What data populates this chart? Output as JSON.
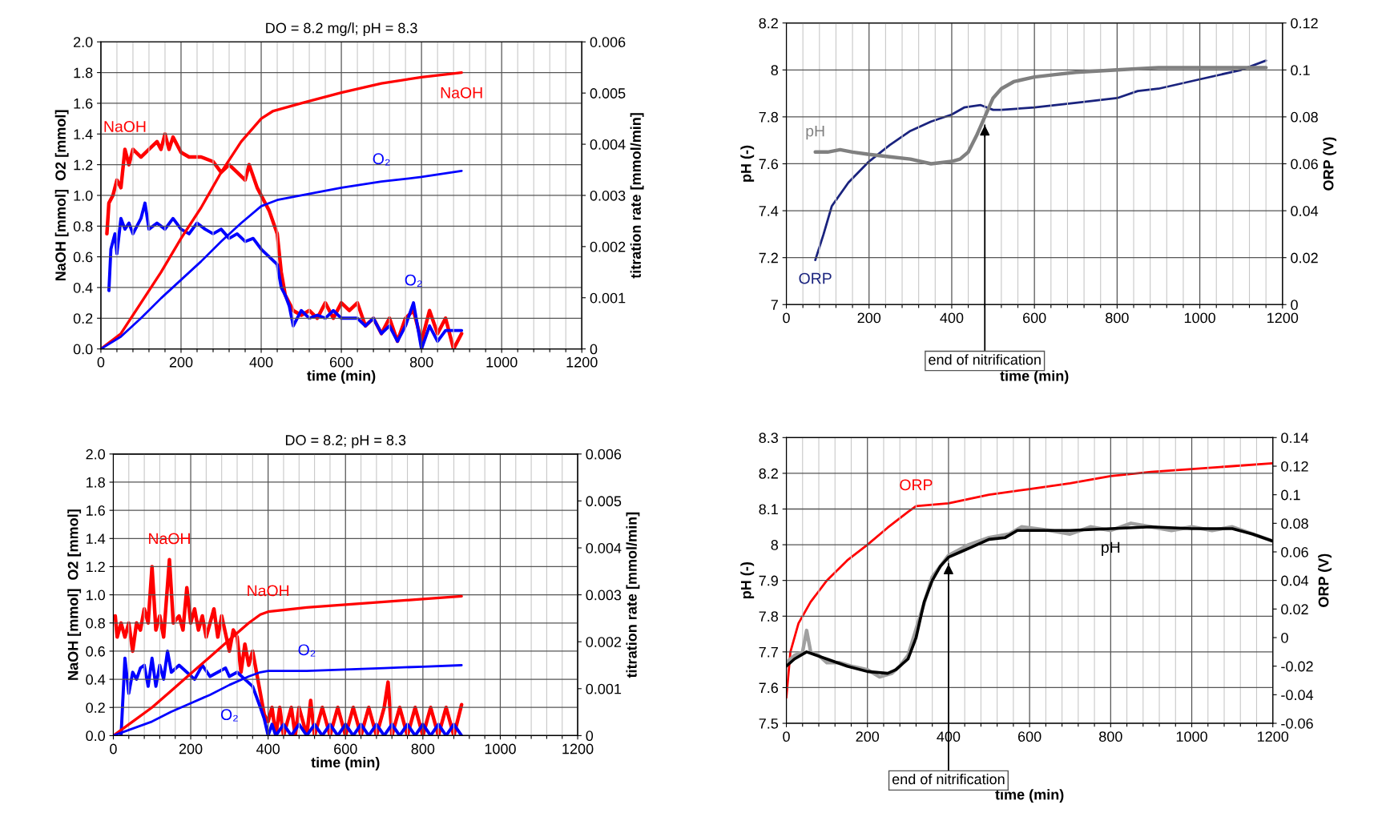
{
  "chart_data": [
    {
      "type": "line",
      "title": "DO = 8.2 mg/l; pH = 8.3",
      "xlabel": "time (min)",
      "ylabel": "NaOH [mmol]  O2 [mmol]",
      "y2label": "titration rate [mmol/min]",
      "xlim": [
        0,
        1200
      ],
      "xticks": [
        0,
        {
          "value": 40,
          "label": null
        },
        {
          "value": 80,
          "label": null
        },
        {
          "value": 120,
          "label": null
        },
        {
          "value": 160,
          "label": null
        },
        200,
        {
          "value": 240,
          "label": null
        },
        {
          "value": 280,
          "label": null
        },
        {
          "value": 320,
          "label": null
        },
        {
          "value": 360,
          "label": null
        },
        400,
        {
          "value": 440,
          "label": null
        },
        {
          "value": 480,
          "label": null
        },
        {
          "value": 520,
          "label": null
        },
        {
          "value": 560,
          "label": null
        },
        600,
        {
          "value": 640,
          "label": null
        },
        {
          "value": 680,
          "label": null
        },
        {
          "value": 720,
          "label": null
        },
        {
          "value": 760,
          "label": null
        },
        800,
        {
          "value": 840,
          "label": null
        },
        {
          "value": 880,
          "label": null
        },
        {
          "value": 920,
          "label": null
        },
        {
          "value": 960,
          "label": null
        },
        1000,
        {
          "value": 1040,
          "label": null
        },
        {
          "value": 1080,
          "label": null
        },
        {
          "value": 1120,
          "label": null
        },
        {
          "value": 1160,
          "label": null
        },
        1200
      ],
      "ylim": [
        0,
        2
      ],
      "yticks": [
        {
          "value": 0,
          "label": "0.0"
        },
        0.2,
        0.4,
        0.6,
        0.8,
        {
          "value": 1,
          "label": "1.0"
        },
        1.2,
        1.4,
        1.6,
        1.8,
        {
          "value": 2,
          "label": "2.0"
        }
      ],
      "y2lim": [
        0,
        0.006
      ],
      "y2ticks": [
        0,
        0.001,
        0.002,
        0.003,
        0.004,
        0.005,
        0.006
      ],
      "grid": true,
      "series": [
        {
          "name": "NaOH",
          "color": "#ff0000",
          "axis": "y2",
          "x": [
            15,
            20,
            30,
            40,
            50,
            60,
            70,
            80,
            100,
            120,
            140,
            150,
            160,
            170,
            180,
            200,
            220,
            250,
            280,
            300,
            320,
            340,
            360,
            370,
            390,
            400,
            420,
            440,
            450,
            460,
            480,
            500,
            520,
            540,
            560,
            580,
            600,
            620,
            640,
            660,
            680,
            700,
            720,
            740,
            760,
            780,
            800,
            820,
            840,
            860,
            880,
            900
          ],
          "values": [
            0.00225,
            0.00285,
            0.003,
            0.0033,
            0.00315,
            0.0039,
            0.0036,
            0.0039,
            0.00375,
            0.0039,
            0.00405,
            0.0039,
            0.0042,
            0.0039,
            0.00414,
            0.00384,
            0.00375,
            0.00375,
            0.00366,
            0.00345,
            0.0036,
            0.00345,
            0.0033,
            0.0036,
            0.00315,
            0.003,
            0.0027,
            0.00225,
            0.0015,
            0.00105,
            0.00075,
            0.00066,
            0.00075,
            0.0006,
            0.0009,
            0.0006,
            0.0009,
            0.00075,
            0.0009,
            0.00045,
            0.0006,
            0.0003,
            0.0006,
            0.00015,
            0.0006,
            0.00075,
            0.00015,
            0.00075,
            0.0003,
            0.0006,
            0,
            0.0003
          ]
        },
        {
          "name": "O₂",
          "color": "#0000ff",
          "axis": "y2",
          "x": [
            20,
            25,
            35,
            40,
            50,
            60,
            70,
            80,
            100,
            110,
            120,
            140,
            160,
            180,
            200,
            220,
            240,
            260,
            280,
            300,
            320,
            340,
            360,
            380,
            400,
            420,
            440,
            450,
            460,
            470,
            480,
            500,
            520,
            540,
            560,
            580,
            600,
            620,
            640,
            660,
            680,
            700,
            720,
            740,
            760,
            780,
            800,
            820,
            840,
            860,
            880,
            900
          ],
          "values": [
            0.00114,
            0.00195,
            0.00225,
            0.00186,
            0.00255,
            0.00234,
            0.00246,
            0.00225,
            0.00255,
            0.00285,
            0.00234,
            0.00246,
            0.00234,
            0.00255,
            0.00234,
            0.00225,
            0.00246,
            0.00234,
            0.00225,
            0.00234,
            0.00216,
            0.00225,
            0.0021,
            0.00216,
            0.00195,
            0.0018,
            0.00165,
            0.0012,
            0.00105,
            0.00084,
            0.00045,
            0.00075,
            0.0006,
            0.00066,
            0.0006,
            0.00075,
            0.0006,
            0.0006,
            0.0006,
            0.00045,
            0.0006,
            0.0003,
            0.00045,
            0.00015,
            0.00045,
            0.0009,
            0,
            0.00045,
            0.00015,
            0.00036,
            0.00036,
            0.00036
          ]
        },
        {
          "name": "NaOH",
          "color": "#ff0000",
          "axis": "y",
          "x": [
            0,
            50,
            100,
            150,
            200,
            250,
            300,
            350,
            400,
            430,
            500,
            600,
            700,
            800,
            900
          ],
          "values": [
            0,
            0.1,
            0.3,
            0.5,
            0.72,
            0.92,
            1.15,
            1.35,
            1.5,
            1.55,
            1.6,
            1.67,
            1.73,
            1.77,
            1.8
          ]
        },
        {
          "name": "O₂",
          "color": "#0000ff",
          "axis": "y",
          "x": [
            0,
            50,
            100,
            150,
            200,
            250,
            300,
            350,
            400,
            440,
            500,
            600,
            700,
            800,
            900
          ],
          "values": [
            0,
            0.08,
            0.2,
            0.33,
            0.45,
            0.57,
            0.7,
            0.82,
            0.93,
            0.97,
            1.0,
            1.05,
            1.09,
            1.12,
            1.16
          ]
        }
      ]
    },
    {
      "type": "line",
      "xlabel": "time (min)",
      "ylabel": "pH (-)",
      "y2label": "ORP (V)",
      "xlim": [
        0,
        1200
      ],
      "xticks": [
        0,
        {
          "value": 40,
          "label": null
        },
        {
          "value": 80,
          "label": null
        },
        {
          "value": 120,
          "label": null
        },
        {
          "value": 160,
          "label": null
        },
        200,
        {
          "value": 240,
          "label": null
        },
        {
          "value": 280,
          "label": null
        },
        {
          "value": 320,
          "label": null
        },
        {
          "value": 360,
          "label": null
        },
        400,
        {
          "value": 440,
          "label": null
        },
        {
          "value": 480,
          "label": null
        },
        {
          "value": 520,
          "label": null
        },
        {
          "value": 560,
          "label": null
        },
        600,
        {
          "value": 640,
          "label": null
        },
        {
          "value": 680,
          "label": null
        },
        {
          "value": 720,
          "label": null
        },
        {
          "value": 760,
          "label": null
        },
        800,
        {
          "value": 840,
          "label": null
        },
        {
          "value": 880,
          "label": null
        },
        {
          "value": 920,
          "label": null
        },
        {
          "value": 960,
          "label": null
        },
        1000,
        {
          "value": 1040,
          "label": null
        },
        {
          "value": 1080,
          "label": null
        },
        {
          "value": 1120,
          "label": null
        },
        {
          "value": 1160,
          "label": null
        },
        1200
      ],
      "ylim": [
        7,
        8.2
      ],
      "yticks": [
        7,
        7.2,
        7.4,
        7.6,
        7.8,
        8,
        8.2
      ],
      "y2lim": [
        0,
        0.12
      ],
      "y2ticks": [
        0,
        0.02,
        0.04,
        0.06,
        0.08,
        0.1,
        0.12
      ],
      "grid": true,
      "series": [
        {
          "name": "pH",
          "color": "#808080",
          "axis": "y",
          "x": [
            70,
            100,
            130,
            160,
            200,
            250,
            300,
            350,
            400,
            420,
            440,
            460,
            480,
            500,
            520,
            550,
            600,
            650,
            700,
            800,
            900,
            1000,
            1100,
            1160
          ],
          "values": [
            7.65,
            7.65,
            7.66,
            7.65,
            7.64,
            7.63,
            7.62,
            7.6,
            7.61,
            7.62,
            7.65,
            7.72,
            7.8,
            7.88,
            7.92,
            7.95,
            7.97,
            7.98,
            7.99,
            8.0,
            8.01,
            8.01,
            8.01,
            8.01
          ]
        },
        {
          "name": "ORP",
          "color": "#1a237e",
          "axis": "y2",
          "x": [
            70,
            90,
            110,
            150,
            200,
            250,
            300,
            350,
            400,
            430,
            470,
            500,
            520,
            600,
            700,
            800,
            850,
            900,
            1000,
            1100,
            1160
          ],
          "values": [
            0.019,
            0.03,
            0.042,
            0.052,
            0.061,
            0.068,
            0.074,
            0.078,
            0.081,
            0.084,
            0.085,
            0.083,
            0.083,
            0.084,
            0.086,
            0.088,
            0.091,
            0.092,
            0.096,
            0.1,
            0.104
          ]
        }
      ],
      "ref_lines": [
        {
          "axis": "x",
          "value": 480,
          "label": "end of nitrification"
        }
      ]
    },
    {
      "type": "line",
      "title": "DO = 8.2; pH = 8.3",
      "xlabel": "time (min)",
      "ylabel": "NaOH [mmol]  O2 [mmol]",
      "y2label": "titration rate [mmol/min]",
      "xlim": [
        0,
        1200
      ],
      "xticks": [
        0,
        {
          "value": 40,
          "label": null
        },
        {
          "value": 80,
          "label": null
        },
        {
          "value": 120,
          "label": null
        },
        {
          "value": 160,
          "label": null
        },
        200,
        {
          "value": 240,
          "label": null
        },
        {
          "value": 280,
          "label": null
        },
        {
          "value": 320,
          "label": null
        },
        {
          "value": 360,
          "label": null
        },
        400,
        {
          "value": 440,
          "label": null
        },
        {
          "value": 480,
          "label": null
        },
        {
          "value": 520,
          "label": null
        },
        {
          "value": 560,
          "label": null
        },
        600,
        {
          "value": 640,
          "label": null
        },
        {
          "value": 680,
          "label": null
        },
        {
          "value": 720,
          "label": null
        },
        {
          "value": 760,
          "label": null
        },
        800,
        {
          "value": 840,
          "label": null
        },
        {
          "value": 880,
          "label": null
        },
        {
          "value": 920,
          "label": null
        },
        {
          "value": 960,
          "label": null
        },
        1000,
        {
          "value": 1040,
          "label": null
        },
        {
          "value": 1080,
          "label": null
        },
        {
          "value": 1120,
          "label": null
        },
        {
          "value": 1160,
          "label": null
        },
        1200
      ],
      "ylim": [
        0,
        2
      ],
      "yticks": [
        {
          "value": 0,
          "label": "0.0"
        },
        0.2,
        0.4,
        0.6,
        0.8,
        {
          "value": 1,
          "label": "1.0"
        },
        1.2,
        1.4,
        1.6,
        1.8,
        {
          "value": 2,
          "label": "2.0"
        }
      ],
      "y2lim": [
        0,
        0.006
      ],
      "y2ticks": [
        0,
        0.001,
        0.002,
        0.003,
        0.004,
        0.005,
        0.006
      ],
      "grid": true,
      "series": [
        {
          "name": "NaOH",
          "color": "#ff0000",
          "axis": "y2",
          "x": [
            5,
            10,
            20,
            30,
            40,
            50,
            60,
            70,
            80,
            90,
            100,
            110,
            120,
            130,
            145,
            155,
            170,
            180,
            190,
            200,
            210,
            220,
            230,
            240,
            260,
            270,
            280,
            300,
            310,
            320,
            330,
            340,
            350,
            360,
            370,
            380,
            390,
            400,
            410,
            420,
            430,
            440,
            460,
            470,
            480,
            500,
            510,
            520,
            540,
            560,
            580,
            600,
            620,
            640,
            660,
            680,
            700,
            710,
            720,
            740,
            760,
            780,
            800,
            820,
            840,
            860,
            880,
            900
          ],
          "values": [
            0.00255,
            0.0021,
            0.0024,
            0.0021,
            0.0024,
            0.0018,
            0.0024,
            0.00225,
            0.0027,
            0.0024,
            0.0036,
            0.00225,
            0.00255,
            0.0021,
            0.00375,
            0.0024,
            0.00255,
            0.00225,
            0.00315,
            0.0024,
            0.0027,
            0.00225,
            0.00255,
            0.0021,
            0.0027,
            0.0021,
            0.00255,
            0.0018,
            0.00225,
            0.0021,
            0.00135,
            0.00195,
            0.0015,
            0.0018,
            0.00135,
            0.0009,
            0.00045,
            0.0003,
            0.0006,
            0,
            0.0006,
            0,
            0.0006,
            0,
            0.0006,
            0,
            0.00075,
            0,
            0.0006,
            0,
            0.0006,
            0,
            0.0006,
            0,
            0.0006,
            0,
            0.0006,
            0.00114,
            0,
            0.0006,
            0,
            0.0006,
            0,
            0.0006,
            0,
            0.0006,
            0,
            0.00066
          ]
        },
        {
          "name": "O₂",
          "color": "#0000ff",
          "axis": "y2",
          "x": [
            20,
            30,
            40,
            50,
            60,
            70,
            80,
            90,
            100,
            110,
            120,
            130,
            140,
            150,
            170,
            190,
            210,
            230,
            250,
            270,
            290,
            300,
            320,
            340,
            360,
            380,
            390,
            400,
            410,
            420,
            440,
            460,
            480,
            500,
            520,
            540,
            560,
            580,
            600,
            620,
            640,
            660,
            680,
            700,
            720,
            740,
            760,
            780,
            800,
            820,
            840,
            860,
            880,
            900
          ],
          "values": [
            0,
            0.00165,
            0.0009,
            0.00135,
            0.0012,
            0.00144,
            0.0015,
            0.00105,
            0.00165,
            0.00105,
            0.0015,
            0.0012,
            0.0018,
            0.00135,
            0.0015,
            0.00135,
            0.0012,
            0.0015,
            0.00126,
            0.00135,
            0.00144,
            0.00126,
            0.00135,
            0.0012,
            0.00105,
            0.0006,
            0.00036,
            0,
            0.00024,
            0,
            0.00024,
            0,
            0.00024,
            0,
            0.00024,
            0,
            0.00024,
            0,
            0.00024,
            0,
            0.00024,
            0,
            0.00024,
            0,
            0.00024,
            0,
            0.00024,
            0,
            0.00024,
            0,
            0.00024,
            0,
            0.00024,
            0
          ]
        },
        {
          "name": "NaOH",
          "color": "#ff0000",
          "axis": "y",
          "x": [
            0,
            50,
            100,
            150,
            200,
            250,
            300,
            350,
            380,
            400,
            500,
            600,
            700,
            800,
            900
          ],
          "values": [
            0,
            0.1,
            0.2,
            0.32,
            0.44,
            0.56,
            0.68,
            0.8,
            0.86,
            0.88,
            0.91,
            0.93,
            0.95,
            0.97,
            0.99
          ]
        },
        {
          "name": "O₂",
          "color": "#0000ff",
          "axis": "y",
          "x": [
            0,
            50,
            100,
            150,
            200,
            250,
            300,
            350,
            380,
            400,
            500,
            600,
            700,
            800,
            900
          ],
          "values": [
            0,
            0.05,
            0.1,
            0.17,
            0.23,
            0.29,
            0.36,
            0.42,
            0.45,
            0.46,
            0.46,
            0.47,
            0.48,
            0.49,
            0.5
          ]
        }
      ]
    },
    {
      "type": "line",
      "xlabel": "time (min)",
      "ylabel": "pH (-)",
      "y2label": "ORP (V)",
      "xlim": [
        0,
        1200
      ],
      "xticks": [
        0,
        {
          "value": 40,
          "label": null
        },
        {
          "value": 80,
          "label": null
        },
        {
          "value": 120,
          "label": null
        },
        {
          "value": 160,
          "label": null
        },
        200,
        {
          "value": 240,
          "label": null
        },
        {
          "value": 280,
          "label": null
        },
        {
          "value": 320,
          "label": null
        },
        {
          "value": 360,
          "label": null
        },
        400,
        {
          "value": 440,
          "label": null
        },
        {
          "value": 480,
          "label": null
        },
        {
          "value": 520,
          "label": null
        },
        {
          "value": 560,
          "label": null
        },
        600,
        {
          "value": 640,
          "label": null
        },
        {
          "value": 680,
          "label": null
        },
        {
          "value": 720,
          "label": null
        },
        {
          "value": 760,
          "label": null
        },
        800,
        {
          "value": 840,
          "label": null
        },
        {
          "value": 880,
          "label": null
        },
        {
          "value": 920,
          "label": null
        },
        {
          "value": 960,
          "label": null
        },
        1000,
        {
          "value": 1040,
          "label": null
        },
        {
          "value": 1080,
          "label": null
        },
        {
          "value": 1120,
          "label": null
        },
        {
          "value": 1160,
          "label": null
        },
        1200
      ],
      "ylim": [
        7.5,
        8.3
      ],
      "yticks": [
        7.5,
        7.6,
        7.7,
        7.8,
        7.9,
        8,
        8.1,
        8.2,
        8.3
      ],
      "y2lim": [
        -0.06,
        0.14
      ],
      "y2ticks": [
        -0.06,
        -0.04,
        -0.02,
        0,
        0.02,
        0.04,
        0.06,
        0.08,
        0.1,
        0.12,
        0.14
      ],
      "grid": true,
      "series": [
        {
          "color": "#a0a0a0",
          "axis": "y",
          "x": [
            0,
            20,
            40,
            50,
            60,
            80,
            100,
            130,
            160,
            200,
            230,
            260,
            280,
            300,
            330,
            360,
            400,
            450,
            500,
            550,
            580,
            650,
            700,
            750,
            800,
            850,
            900,
            950,
            1000,
            1050,
            1100,
            1150,
            1200
          ],
          "values": [
            7.67,
            7.69,
            7.7,
            7.76,
            7.7,
            7.69,
            7.67,
            7.67,
            7.66,
            7.65,
            7.63,
            7.64,
            7.66,
            7.69,
            7.8,
            7.91,
            7.97,
            8.0,
            8.02,
            8.03,
            8.05,
            8.04,
            8.03,
            8.05,
            8.04,
            8.06,
            8.05,
            8.04,
            8.05,
            8.04,
            8.05,
            8.03,
            8.01
          ]
        },
        {
          "name": "pH",
          "color": "#000000",
          "axis": "y",
          "x": [
            0,
            20,
            50,
            100,
            150,
            200,
            250,
            270,
            300,
            320,
            340,
            360,
            380,
            400,
            430,
            460,
            500,
            540,
            570,
            600,
            700,
            800,
            900,
            1000,
            1100,
            1150,
            1200
          ],
          "values": [
            7.66,
            7.68,
            7.7,
            7.68,
            7.66,
            7.645,
            7.64,
            7.65,
            7.68,
            7.74,
            7.84,
            7.9,
            7.94,
            7.965,
            7.98,
            7.995,
            8.015,
            8.02,
            8.04,
            8.04,
            8.04,
            8.045,
            8.05,
            8.045,
            8.045,
            8.03,
            8.01
          ]
        },
        {
          "name": "ORP",
          "color": "#ff0000",
          "axis": "y2",
          "x": [
            0,
            10,
            30,
            60,
            100,
            150,
            200,
            250,
            300,
            320,
            400,
            500,
            600,
            700,
            800,
            900,
            1000,
            1100,
            1200
          ],
          "values": [
            -0.042,
            -0.01,
            0.01,
            0.025,
            0.04,
            0.054,
            0.065,
            0.077,
            0.088,
            0.092,
            0.094,
            0.1,
            0.104,
            0.108,
            0.113,
            0.116,
            0.118,
            0.12,
            0.122
          ]
        }
      ],
      "ref_lines": [
        {
          "axis": "x",
          "value": 400,
          "label": "end of nitrification"
        }
      ]
    }
  ]
}
